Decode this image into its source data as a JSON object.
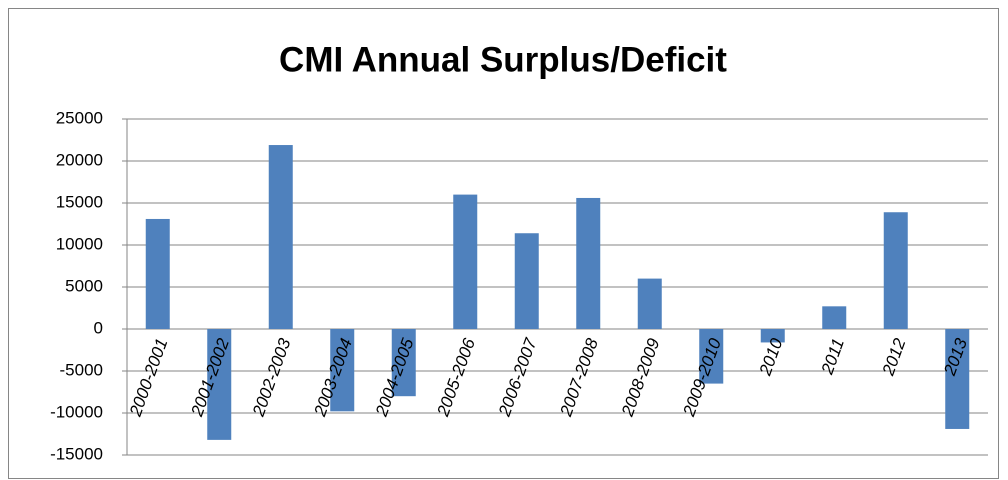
{
  "chart_data": {
    "type": "bar",
    "title": "CMI Annual Surplus/Deficit",
    "categories": [
      "2000-2001",
      "2001-2002",
      "2002-2003",
      "2003-2004",
      "2004-2005",
      "2005-2006",
      "2006-2007",
      "2007-2008",
      "2008-2009",
      "2009-2010",
      "2010",
      "2011",
      "2012",
      "2013"
    ],
    "values": [
      13100,
      -13200,
      21900,
      -9800,
      -8000,
      16000,
      11400,
      15600,
      6000,
      -6500,
      -1600,
      2700,
      13900,
      -11900
    ],
    "color": "#4f81bd",
    "ylim": [
      -15000,
      25000
    ],
    "yticks": [
      -15000,
      -10000,
      -5000,
      0,
      5000,
      10000,
      15000,
      20000,
      25000
    ],
    "grid": true
  }
}
